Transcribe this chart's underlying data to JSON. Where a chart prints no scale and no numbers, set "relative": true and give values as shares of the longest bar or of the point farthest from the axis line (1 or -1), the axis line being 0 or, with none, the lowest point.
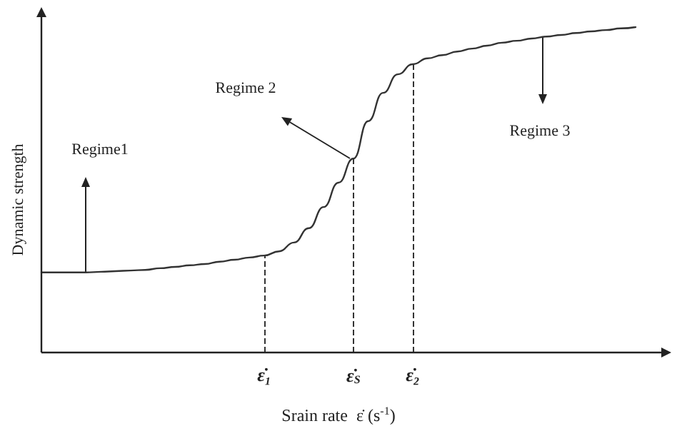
{
  "chart_data": {
    "type": "line",
    "relative": true,
    "xlabel": "Srain rate  ε̇ (s$^{-1}$)",
    "ylabel": "Dynamic strength",
    "categories": [
      null,
      null,
      null,
      null,
      null,
      null,
      null,
      null,
      null,
      null,
      null,
      null,
      null,
      null,
      null,
      "ε̇₁",
      null,
      null,
      null,
      null,
      null,
      "ε̇$_{S}$",
      null,
      null,
      null,
      "ε̇₂",
      null,
      null,
      null,
      null,
      null,
      null,
      null,
      null,
      null,
      null,
      null,
      null,
      null,
      null,
      null
    ],
    "series": [
      {
        "color": "#333333",
        "values": [
          0.246,
          0.246,
          0.246,
          0.246,
          0.248,
          0.25,
          0.252,
          0.254,
          0.259,
          0.263,
          0.268,
          0.272,
          0.279,
          0.285,
          0.292,
          0.298,
          0.311,
          0.338,
          0.382,
          0.447,
          0.522,
          0.596,
          0.711,
          0.798,
          0.855,
          0.886,
          0.904,
          0.914,
          0.925,
          0.934,
          0.943,
          0.952,
          0.958,
          0.965,
          0.971,
          0.976,
          0.982,
          0.987,
          0.991,
          0.996,
          1.0
        ]
      }
    ],
    "ref_lines": [
      {
        "axis": "x",
        "value": "ε̇₁",
        "line_style": "dashed"
      },
      {
        "axis": "x",
        "value": "ε̇$_{S}$",
        "line_style": "dashed"
      },
      {
        "axis": "x",
        "value": "ε̇₂",
        "line_style": "dashed"
      }
    ],
    "annotations": [
      "Regime1",
      "Regime 2",
      "Regime 3"
    ],
    "grid": false,
    "legend": false,
    "marker": "none",
    "line_style": "solid"
  }
}
